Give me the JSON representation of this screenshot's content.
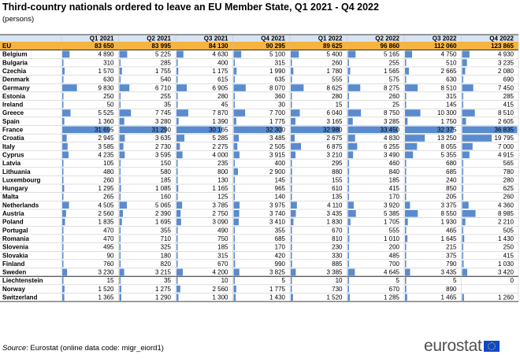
{
  "title": "Third-country nationals ordered to leave an EU Member State, Q1 2021 - Q4 2022",
  "subtitle": "(persons)",
  "source_label": "Source",
  "source_text": ": Eurostat (online data code: migr_eiord1)",
  "logo": "eurostat",
  "colors": {
    "header_bg": "#d8e3f2",
    "eu_row_bg": "#f6b33f",
    "bar": "#5a8bcf",
    "grid": "#bfbfbf",
    "text": "#000000"
  },
  "chart_data": {
    "type": "table",
    "title": "Third-country nationals ordered to leave an EU Member State, Q1 2021 - Q4 2022",
    "subtitle": "(persons)",
    "columns": [
      "Q1 2021",
      "Q2 2021",
      "Q3 2021",
      "Q4 2021",
      "Q1 2022",
      "Q2 2022",
      "Q3 2022",
      "Q4 2022"
    ],
    "rows": [
      {
        "label": "EU",
        "values": [
          "83 650",
          "83 995",
          "84 130",
          "90 295",
          "89 625",
          "96 860",
          "112 060",
          "123 865"
        ]
      },
      {
        "label": "Belgium",
        "values": [
          "4 890",
          "5 225",
          "4 630",
          "5 100",
          "5 400",
          "5 165",
          "4 750",
          "4 930"
        ]
      },
      {
        "label": "Bulgaria",
        "values": [
          "310",
          "285",
          "400",
          "315",
          "260",
          "255",
          "510",
          "3 235"
        ]
      },
      {
        "label": "Czechia",
        "values": [
          "1 570",
          "1 755",
          "1 175",
          "1 990",
          "1 780",
          "1 565",
          "2 665",
          "2 080"
        ]
      },
      {
        "label": "Denmark",
        "values": [
          "630",
          "540",
          "615",
          "635",
          "555",
          "575",
          "630",
          "690"
        ]
      },
      {
        "label": "Germany",
        "values": [
          "9 830",
          "6 710",
          "6 905",
          "8 070",
          "8 625",
          "8 275",
          "8 510",
          "7 450"
        ]
      },
      {
        "label": "Estonia",
        "values": [
          "250",
          "255",
          "280",
          "360",
          "280",
          "260",
          "315",
          "285"
        ]
      },
      {
        "label": "Ireland",
        "values": [
          "50",
          "35",
          "45",
          "30",
          "15",
          "25",
          "145",
          "415"
        ]
      },
      {
        "label": "Greece",
        "values": [
          "5 525",
          "7 745",
          "7 870",
          "7 700",
          "6 040",
          "8 750",
          "10 300",
          "8 510"
        ]
      },
      {
        "label": "Spain",
        "values": [
          "1 360",
          "3 280",
          "1 390",
          "1 775",
          "3 165",
          "3 285",
          "1 750",
          "2 605"
        ]
      },
      {
        "label": "France",
        "values": [
          "31 695",
          "31 290",
          "30 165",
          "32 300",
          "32 980",
          "33 450",
          "32 375",
          "36 835"
        ]
      },
      {
        "label": "Croatia",
        "values": [
          "2 945",
          "3 635",
          "5 285",
          "3 485",
          "2 675",
          "4 830",
          "13 250",
          "19 795"
        ]
      },
      {
        "label": "Italy",
        "values": [
          "3 585",
          "2 730",
          "2 275",
          "2 505",
          "6 875",
          "6 255",
          "8 055",
          "7 000"
        ]
      },
      {
        "label": "Cyprus",
        "values": [
          "4 235",
          "3 595",
          "4 000",
          "3 915",
          "3 210",
          "3 490",
          "5 355",
          "4 915"
        ]
      },
      {
        "label": "Latvia",
        "values": [
          "105",
          "150",
          "235",
          "400",
          "295",
          "460",
          "680",
          "565"
        ]
      },
      {
        "label": "Lithuania",
        "values": [
          "480",
          "580",
          "800",
          "2 900",
          "880",
          "840",
          "685",
          "780"
        ]
      },
      {
        "label": "Luxembourg",
        "values": [
          "260",
          "185",
          "130",
          "145",
          "155",
          "185",
          "240",
          "280"
        ]
      },
      {
        "label": "Hungary",
        "values": [
          "1 295",
          "1 085",
          "1 165",
          "965",
          "610",
          "415",
          "850",
          "625"
        ]
      },
      {
        "label": "Malta",
        "values": [
          "265",
          "160",
          "125",
          "140",
          "135",
          "170",
          "205",
          "260"
        ]
      },
      {
        "label": "Netherlands",
        "values": [
          "4 505",
          "5 065",
          "3 785",
          "3 975",
          "4 110",
          "3 920",
          "3 375",
          "4 360"
        ]
      },
      {
        "label": "Austria",
        "values": [
          "2 560",
          "2 390",
          "2 750",
          "3 740",
          "3 435",
          "5 385",
          "8 550",
          "8 985"
        ]
      },
      {
        "label": "Poland",
        "values": [
          "1 835",
          "1 695",
          "3 090",
          "3 410",
          "1 830",
          "1 705",
          "1 930",
          "2 210"
        ]
      },
      {
        "label": "Portugal",
        "values": [
          "470",
          "355",
          "490",
          "355",
          "670",
          "555",
          "465",
          "505"
        ]
      },
      {
        "label": "Romania",
        "values": [
          "470",
          "710",
          "750",
          "685",
          "810",
          "1 010",
          "1 645",
          "1 430"
        ]
      },
      {
        "label": "Slovenia",
        "values": [
          "495",
          "325",
          "185",
          "170",
          "230",
          "200",
          "215",
          "250"
        ]
      },
      {
        "label": "Slovakia",
        "values": [
          "90",
          "180",
          "315",
          "420",
          "330",
          "485",
          "375",
          "415"
        ]
      },
      {
        "label": "Finland",
        "values": [
          "760",
          "820",
          "670",
          "990",
          "885",
          "700",
          "790",
          "1 030"
        ]
      },
      {
        "label": "Sweden",
        "values": [
          "3 230",
          "3 215",
          "4 200",
          "3 825",
          "3 385",
          "4 645",
          "3 435",
          "3 420"
        ]
      },
      {
        "label": "Liechtenstein",
        "values": [
          "15",
          "35",
          "10",
          "5",
          "10",
          "5",
          "5",
          "0"
        ]
      },
      {
        "label": "Norway",
        "values": [
          "1 520",
          "1 275",
          "2 560",
          "1 775",
          "730",
          "670",
          "890",
          ""
        ]
      },
      {
        "label": "Switzerland",
        "values": [
          "1 365",
          "1 290",
          "1 300",
          "1 430",
          "1 520",
          "1 285",
          "1 465",
          "1 260"
        ]
      }
    ]
  }
}
